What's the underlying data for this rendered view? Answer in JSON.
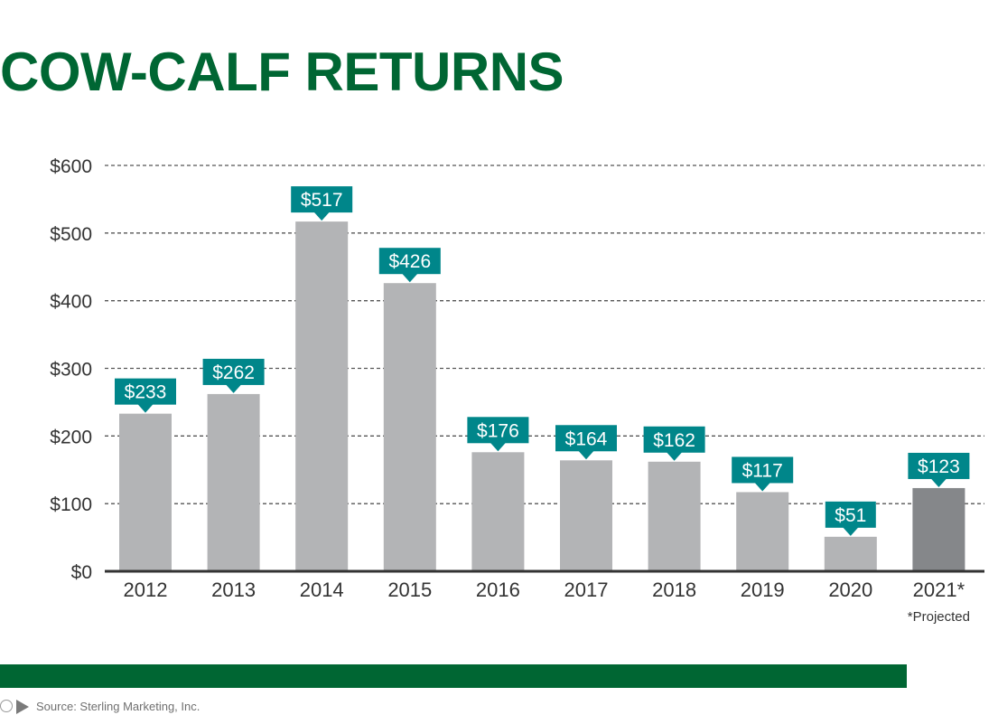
{
  "colors": {
    "title": "#006633",
    "bar": "#b3b4b6",
    "bar_projected": "#85878a",
    "label_bg": "#00868a",
    "label_text": "#ffffff",
    "grid": "#555555",
    "axis": "#333333",
    "tick_text": "#333333",
    "footer_bar": "#006633"
  },
  "title": "COW-CALF RETURNS",
  "source": "Source: Sterling Marketing, Inc.",
  "chart_data": {
    "type": "bar",
    "categories": [
      "2012",
      "2013",
      "2014",
      "2015",
      "2016",
      "2017",
      "2018",
      "2019",
      "2020",
      "2021*"
    ],
    "values": [
      233,
      262,
      517,
      426,
      176,
      164,
      162,
      117,
      51,
      123
    ],
    "data_labels": [
      "$233",
      "$262",
      "$517",
      "$426",
      "$176",
      "$164",
      "$162",
      "$117",
      "$51",
      "$123"
    ],
    "projected_index": 9,
    "yticks": [
      0,
      100,
      200,
      300,
      400,
      500,
      600
    ],
    "ytick_labels": [
      "$0",
      "$100",
      "$200",
      "$300",
      "$400",
      "$500",
      "$600"
    ],
    "ylim": [
      0,
      600
    ],
    "grid": "dashed",
    "footnote": "*Projected",
    "title": "",
    "xlabel": "",
    "ylabel": ""
  }
}
